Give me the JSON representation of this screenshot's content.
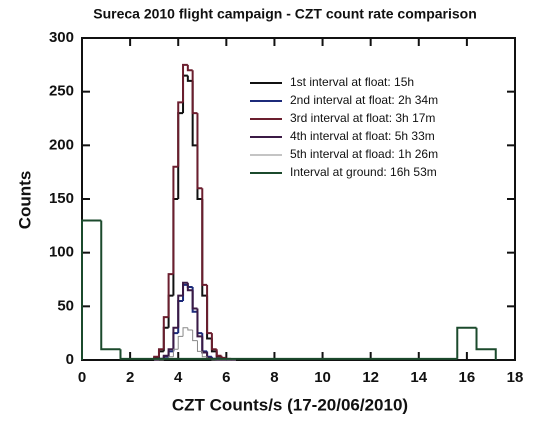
{
  "chart_data": {
    "type": "histogram",
    "title": "Sureca 2010 flight campaign - CZT count rate comparison",
    "x_label": "CZT Counts/s (17-20/06/2010)",
    "y_label": "Counts",
    "xlim": [
      0,
      18
    ],
    "xticks": [
      0,
      2,
      4,
      6,
      8,
      10,
      12,
      14,
      16,
      18
    ],
    "ylim": [
      0,
      300
    ],
    "yticks": [
      0,
      50,
      100,
      150,
      200,
      250,
      300
    ],
    "legend": "top-right",
    "series": [
      {
        "name": "1st interval at float: 15h",
        "color": "#111111",
        "bins": [
          3.0,
          3.2,
          3.4,
          3.6,
          3.8,
          4.0,
          4.2,
          4.4,
          4.6,
          4.8,
          5.0,
          5.2,
          5.4,
          5.6,
          5.8,
          6.0,
          6.2,
          6.4
        ],
        "values": [
          2,
          8,
          30,
          60,
          150,
          230,
          265,
          260,
          200,
          150,
          60,
          20,
          8,
          3,
          1,
          0,
          0
        ]
      },
      {
        "name": "2nd interval at float: 2h 34m",
        "color": "#1c2a7a",
        "bins": [
          3.0,
          3.2,
          3.4,
          3.6,
          3.8,
          4.0,
          4.2,
          4.4,
          4.6,
          4.8,
          5.0,
          5.2,
          5.4,
          5.6,
          5.8,
          6.0,
          6.2,
          6.4
        ],
        "values": [
          0,
          1,
          3,
          8,
          25,
          55,
          70,
          68,
          45,
          25,
          8,
          3,
          1,
          0,
          0,
          0,
          0
        ]
      },
      {
        "name": "3rd interval at float: 3h 17m",
        "color": "#6b1e2e",
        "bins": [
          3.0,
          3.2,
          3.4,
          3.6,
          3.8,
          4.0,
          4.2,
          4.4,
          4.6,
          4.8,
          5.0,
          5.2,
          5.4,
          5.6,
          5.8,
          6.0,
          6.2,
          6.4
        ],
        "values": [
          3,
          10,
          40,
          80,
          180,
          240,
          275,
          270,
          230,
          160,
          70,
          25,
          10,
          4,
          2,
          1,
          0
        ]
      },
      {
        "name": "4th interval at float: 5h 33m",
        "color": "#3b1a45",
        "bins": [
          3.0,
          3.2,
          3.4,
          3.6,
          3.8,
          4.0,
          4.2,
          4.4,
          4.6,
          4.8,
          5.0,
          5.2,
          5.4,
          5.6,
          5.8,
          6.0,
          6.2,
          6.4
        ],
        "values": [
          0,
          1,
          4,
          10,
          30,
          60,
          72,
          65,
          48,
          22,
          7,
          2,
          1,
          0,
          0,
          0,
          0
        ]
      },
      {
        "name": "5th interval at fload: 1h 26m",
        "color": "#888888",
        "bins": [
          3.0,
          3.2,
          3.4,
          3.6,
          3.8,
          4.0,
          4.2,
          4.4,
          4.6,
          4.8,
          5.0,
          5.2,
          5.4,
          5.6,
          5.8,
          6.0,
          6.2,
          6.4
        ],
        "values": [
          0,
          0,
          1,
          3,
          10,
          22,
          30,
          28,
          18,
          8,
          3,
          1,
          0,
          0,
          0,
          0,
          0
        ]
      },
      {
        "name": "Interval at ground: 16h 53m",
        "color": "#1b4a2c",
        "bins": [
          0,
          0.8,
          1.6,
          15.6,
          16.4,
          17.2
        ],
        "values": [
          130,
          10,
          1,
          30,
          10
        ]
      }
    ]
  }
}
